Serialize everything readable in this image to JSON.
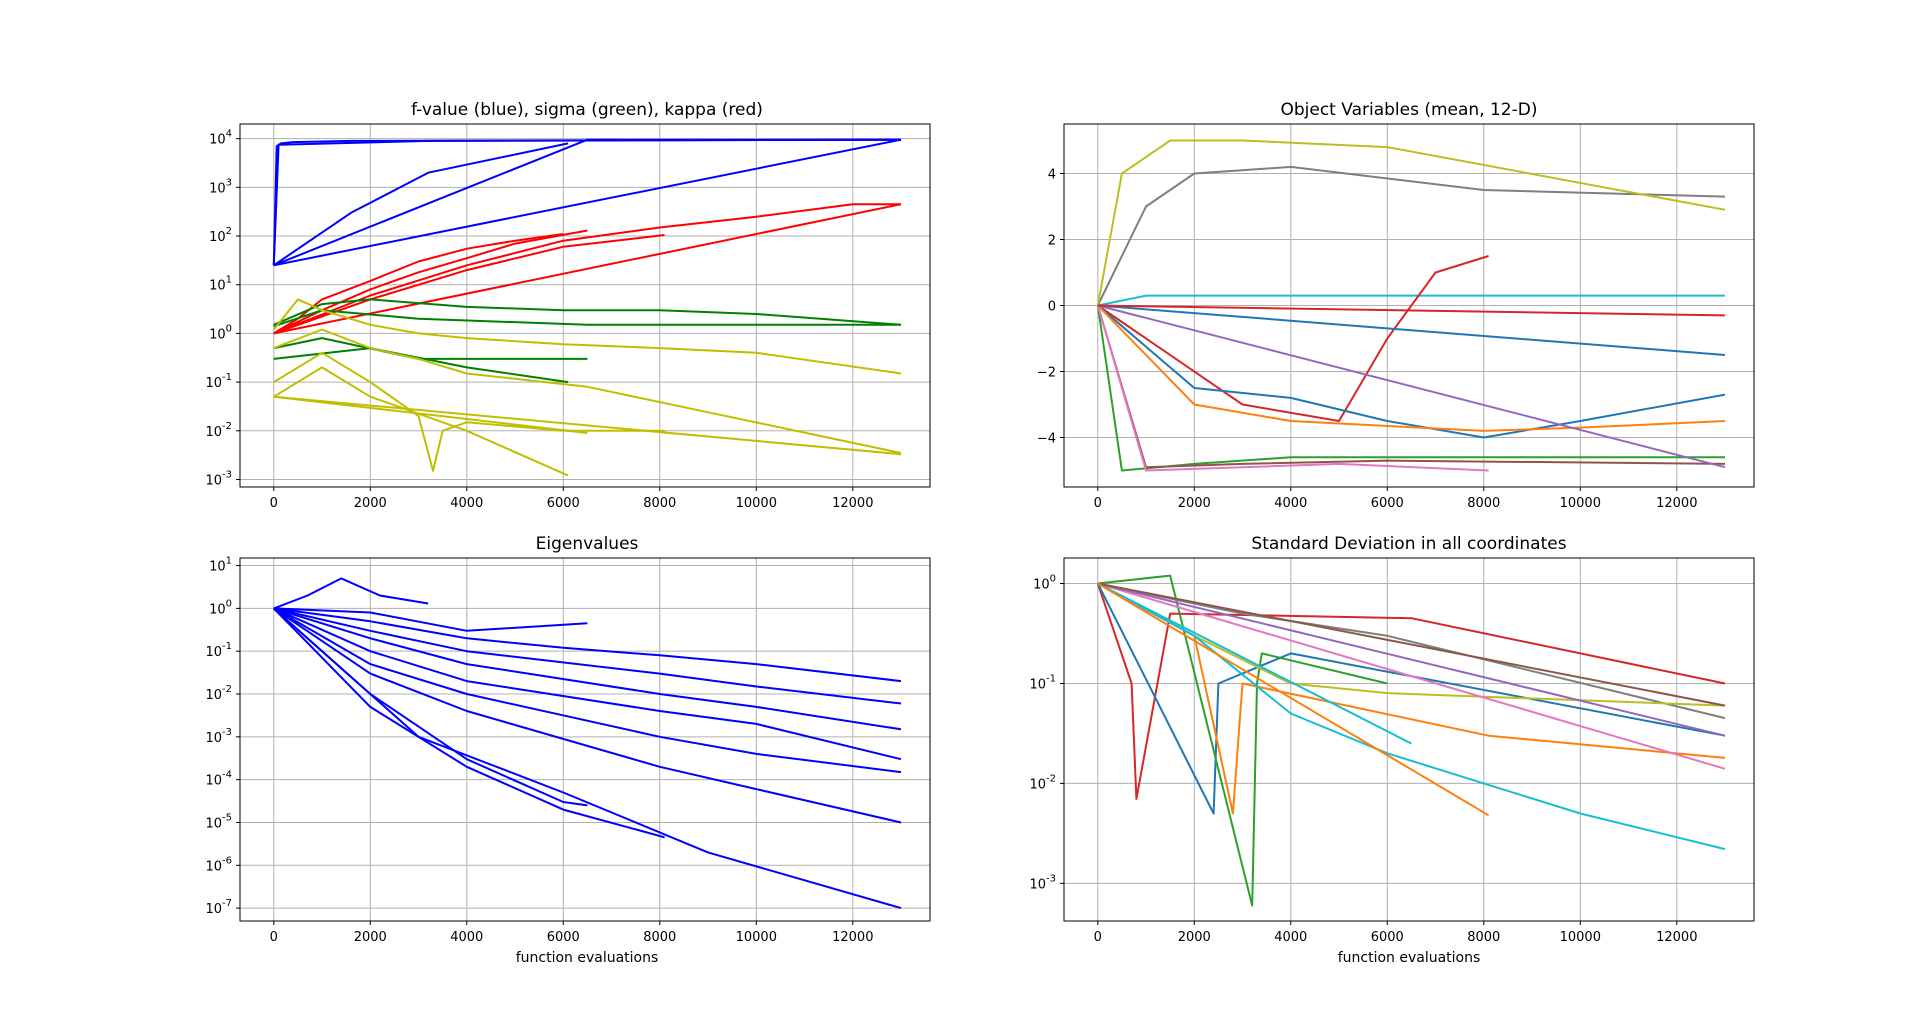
{
  "figure": {
    "panels": [
      {
        "title": "f-value (blue), sigma (green), kappa (red)",
        "xlabel": ""
      },
      {
        "title": "Object Variables (mean, 12-D)",
        "xlabel": ""
      },
      {
        "title": "Eigenvalues",
        "xlabel": "function evaluations"
      },
      {
        "title": "Standard Deviation in all coordinates",
        "xlabel": "function evaluations"
      }
    ]
  },
  "chart_data": [
    {
      "type": "line",
      "title": "f-value (blue), sigma (green), kappa (red)",
      "xlabel": "",
      "ylabel": "",
      "yscale": "log",
      "xlim": [
        -700,
        13600
      ],
      "ylim": [
        0.0007,
        20000
      ],
      "xticks": [
        0,
        2000,
        4000,
        6000,
        8000,
        10000,
        12000
      ],
      "yticks_exp": [
        -3,
        -2,
        -1,
        0,
        1,
        2,
        3,
        4
      ],
      "grid": true,
      "series": [
        {
          "color": "#0000ff",
          "x": [
            0,
            60,
            150,
            400,
            1600,
            13000
          ],
          "y": [
            25,
            7000,
            8000,
            8500,
            9000,
            9500
          ]
        },
        {
          "color": "#0000ff",
          "x": [
            0,
            100,
            3200,
            13000
          ],
          "y": [
            25,
            7500,
            9000,
            9500
          ]
        },
        {
          "color": "#0000ff",
          "x": [
            0,
            6500,
            13000
          ],
          "y": [
            25,
            9500,
            9500
          ]
        },
        {
          "color": "#0000ff",
          "x": [
            0,
            13000
          ],
          "y": [
            25,
            9500
          ]
        },
        {
          "color": "#0000ff",
          "x": [
            0,
            1600,
            3200,
            6100
          ],
          "y": [
            25,
            300,
            2000,
            8000
          ]
        },
        {
          "color": "#ff0000",
          "x": [
            0,
            500,
            1000,
            2000,
            3000,
            4000,
            5000,
            6000
          ],
          "y": [
            1,
            2,
            5,
            12,
            30,
            55,
            80,
            110
          ]
        },
        {
          "color": "#ff0000",
          "x": [
            0,
            1000,
            2000,
            3000,
            4000,
            5000,
            6500
          ],
          "y": [
            1,
            3,
            8,
            18,
            35,
            70,
            130
          ]
        },
        {
          "color": "#ff0000",
          "x": [
            0,
            2000,
            4000,
            6000,
            8100
          ],
          "y": [
            1,
            5,
            20,
            60,
            105
          ]
        },
        {
          "color": "#ff0000",
          "x": [
            0,
            2000,
            4000,
            6000,
            8000,
            10000,
            12000,
            13000
          ],
          "y": [
            1,
            6,
            25,
            80,
            150,
            250,
            450,
            450
          ]
        },
        {
          "color": "#ff0000",
          "x": [
            0,
            13000
          ],
          "y": [
            1,
            450
          ]
        },
        {
          "color": "#008000",
          "x": [
            0,
            1000,
            2000,
            4000,
            6000,
            8000,
            10000,
            13000
          ],
          "y": [
            1.5,
            4,
            5,
            3.5,
            3,
            3,
            2.5,
            1.5
          ]
        },
        {
          "color": "#008000",
          "x": [
            0,
            1000,
            3000,
            6500,
            13000
          ],
          "y": [
            1.4,
            3,
            2,
            1.5,
            1.5
          ]
        },
        {
          "color": "#008000",
          "x": [
            0,
            1000,
            3000,
            6500
          ],
          "y": [
            0.5,
            0.8,
            0.3,
            0.3
          ]
        },
        {
          "color": "#008000",
          "x": [
            0,
            2000,
            4000,
            6100
          ],
          "y": [
            0.3,
            0.5,
            0.2,
            0.1
          ]
        },
        {
          "color": "#bfbf00",
          "x": [
            0,
            500,
            1000,
            2000,
            3000,
            4000,
            6000,
            8000,
            10000,
            13000
          ],
          "y": [
            1.2,
            5,
            3,
            1.5,
            1,
            0.8,
            0.6,
            0.5,
            0.4,
            0.15
          ]
        },
        {
          "color": "#bfbf00",
          "x": [
            0,
            1000,
            2000,
            3000,
            4000,
            6500,
            13000
          ],
          "y": [
            0.5,
            1.2,
            0.5,
            0.3,
            0.15,
            0.08,
            0.0035
          ]
        },
        {
          "color": "#bfbf00",
          "x": [
            0,
            1000,
            2000,
            3000,
            3300,
            3500,
            4000,
            6000,
            8100
          ],
          "y": [
            0.1,
            0.4,
            0.1,
            0.02,
            0.0015,
            0.01,
            0.015,
            0.01,
            0.01
          ]
        },
        {
          "color": "#bfbf00",
          "x": [
            0,
            1000,
            2000,
            4000,
            6100
          ],
          "y": [
            0.05,
            0.2,
            0.05,
            0.01,
            0.0012
          ]
        },
        {
          "color": "#bfbf00",
          "x": [
            0,
            13000
          ],
          "y": [
            0.05,
            0.0033
          ]
        },
        {
          "color": "#bfbf00",
          "x": [
            0,
            6500
          ],
          "y": [
            0.05,
            0.009
          ]
        }
      ]
    },
    {
      "type": "line",
      "title": "Object Variables (mean, 12-D)",
      "xlabel": "",
      "ylabel": "",
      "xlim": [
        -700,
        13600
      ],
      "ylim": [
        -5.5,
        5.5
      ],
      "xticks": [
        0,
        2000,
        4000,
        6000,
        8000,
        10000,
        12000
      ],
      "yticks": [
        -4,
        -2,
        0,
        2,
        4
      ],
      "grid": true,
      "series": [
        {
          "color": "#7f7f7f",
          "x": [
            0,
            1000,
            2000,
            4000,
            8000,
            13000
          ],
          "y": [
            0,
            3,
            4,
            4.2,
            3.5,
            3.3
          ]
        },
        {
          "color": "#bcbd22",
          "x": [
            0,
            500,
            1500,
            3000,
            6000,
            13000
          ],
          "y": [
            0,
            4,
            5,
            5,
            4.8,
            2.9
          ]
        },
        {
          "color": "#17becf",
          "x": [
            0,
            1000,
            4000,
            8000,
            13000
          ],
          "y": [
            0,
            0.3,
            0.3,
            0.3,
            0.3
          ]
        },
        {
          "color": "#d62728",
          "x": [
            0,
            3000,
            5000,
            6000,
            7000,
            8100
          ],
          "y": [
            0,
            -3,
            -3.5,
            -1,
            1,
            1.5
          ]
        },
        {
          "color": "#1f77b4",
          "x": [
            0,
            2000,
            4000,
            6000,
            8000,
            10000,
            13000
          ],
          "y": [
            0,
            -2.5,
            -2.8,
            -3.5,
            -4,
            -3.5,
            -2.7
          ]
        },
        {
          "color": "#1f77b4",
          "x": [
            0,
            13000
          ],
          "y": [
            0,
            -1.5
          ]
        },
        {
          "color": "#ff7f0e",
          "x": [
            0,
            2000,
            4000,
            8000,
            10000,
            13000
          ],
          "y": [
            0,
            -3,
            -3.5,
            -3.8,
            -3.7,
            -3.5
          ]
        },
        {
          "color": "#2ca02c",
          "x": [
            0,
            500,
            2000,
            4000,
            13000
          ],
          "y": [
            0,
            -5,
            -4.8,
            -4.6,
            -4.6
          ]
        },
        {
          "color": "#8c564b",
          "x": [
            0,
            1000,
            3000,
            6000,
            13000
          ],
          "y": [
            0,
            -4.9,
            -4.8,
            -4.7,
            -4.8
          ]
        },
        {
          "color": "#e377c2",
          "x": [
            0,
            1000,
            3000,
            5000,
            8100
          ],
          "y": [
            0,
            -5,
            -4.9,
            -4.8,
            -5
          ]
        },
        {
          "color": "#9467bd",
          "x": [
            0,
            13000
          ],
          "y": [
            0,
            -4.9
          ]
        },
        {
          "color": "#d62728",
          "x": [
            0,
            13000
          ],
          "y": [
            0,
            -0.3
          ]
        }
      ]
    },
    {
      "type": "line",
      "title": "Eigenvalues",
      "xlabel": "function evaluations",
      "ylabel": "",
      "yscale": "log",
      "xlim": [
        -700,
        13600
      ],
      "ylim": [
        5e-08,
        15
      ],
      "xticks": [
        0,
        2000,
        4000,
        6000,
        8000,
        10000,
        12000
      ],
      "yticks_exp": [
        -7,
        -6,
        -5,
        -4,
        -3,
        -2,
        -1,
        0,
        1
      ],
      "grid": true,
      "series": [
        {
          "color": "#0000ff",
          "x": [
            0,
            700,
            1400,
            2200,
            3200
          ],
          "y": [
            1,
            2,
            5,
            2,
            1.3
          ]
        },
        {
          "color": "#0000ff",
          "x": [
            0,
            2000,
            4000,
            6500
          ],
          "y": [
            1,
            0.8,
            0.3,
            0.45
          ]
        },
        {
          "color": "#0000ff",
          "x": [
            0,
            2000,
            4000,
            6000,
            8000,
            10000,
            13000
          ],
          "y": [
            1,
            0.5,
            0.2,
            0.12,
            0.08,
            0.05,
            0.02
          ]
        },
        {
          "color": "#0000ff",
          "x": [
            0,
            2000,
            4000,
            8000,
            10000,
            13000
          ],
          "y": [
            1,
            0.3,
            0.1,
            0.03,
            0.015,
            0.006
          ]
        },
        {
          "color": "#0000ff",
          "x": [
            0,
            2000,
            4000,
            8000,
            10000,
            13000
          ],
          "y": [
            1,
            0.2,
            0.05,
            0.01,
            0.005,
            0.0015
          ]
        },
        {
          "color": "#0000ff",
          "x": [
            0,
            2000,
            4000,
            8000,
            10000,
            13000
          ],
          "y": [
            1,
            0.1,
            0.02,
            0.004,
            0.002,
            0.0003
          ]
        },
        {
          "color": "#0000ff",
          "x": [
            0,
            2000,
            4000,
            8000,
            10000,
            13000
          ],
          "y": [
            1,
            0.05,
            0.01,
            0.001,
            0.0004,
            0.00015
          ]
        },
        {
          "color": "#0000ff",
          "x": [
            0,
            2000,
            4000,
            8000,
            10000,
            13000
          ],
          "y": [
            1,
            0.03,
            0.004,
            0.0002,
            6e-05,
            1e-05
          ]
        },
        {
          "color": "#0000ff",
          "x": [
            0,
            2000,
            4000,
            6000,
            6500
          ],
          "y": [
            1,
            0.01,
            0.0003,
            3e-05,
            2.5e-05
          ]
        },
        {
          "color": "#0000ff",
          "x": [
            0,
            2000,
            4000,
            6000,
            8100
          ],
          "y": [
            1,
            0.005,
            0.0002,
            2e-05,
            4.5e-06
          ]
        },
        {
          "color": "#0000ff",
          "x": [
            0,
            3000,
            6000,
            9000,
            13000
          ],
          "y": [
            1,
            0.001,
            5e-05,
            2e-06,
            1e-07
          ]
        }
      ]
    },
    {
      "type": "line",
      "title": "Standard Deviation in all coordinates",
      "xlabel": "function evaluations",
      "ylabel": "",
      "yscale": "log",
      "xlim": [
        -700,
        13600
      ],
      "ylim": [
        0.00042,
        1.8
      ],
      "xticks": [
        0,
        2000,
        4000,
        6000,
        8000,
        10000,
        12000
      ],
      "yticks_exp": [
        -3,
        -2,
        -1,
        0
      ],
      "grid": true,
      "series": [
        {
          "color": "#d62728",
          "x": [
            0,
            700,
            800,
            1500,
            6500,
            13000
          ],
          "y": [
            1,
            0.1,
            0.007,
            0.5,
            0.45,
            0.1
          ]
        },
        {
          "color": "#1f77b4",
          "x": [
            0,
            2400,
            2500,
            4000,
            13000
          ],
          "y": [
            1,
            0.005,
            0.1,
            0.2,
            0.03
          ]
        },
        {
          "color": "#2ca02c",
          "x": [
            0,
            1500,
            3200,
            3300,
            3400,
            6000
          ],
          "y": [
            1,
            1.2,
            0.0006,
            0.1,
            0.2,
            0.1
          ]
        },
        {
          "color": "#ff7f0e",
          "x": [
            0,
            2000,
            2800,
            3000,
            8100,
            13000
          ],
          "y": [
            1,
            0.3,
            0.005,
            0.1,
            0.03,
            0.018
          ]
        },
        {
          "color": "#7f7f7f",
          "x": [
            0,
            3000,
            6000,
            13000
          ],
          "y": [
            1,
            0.5,
            0.3,
            0.045
          ]
        },
        {
          "color": "#bcbd22",
          "x": [
            0,
            2000,
            4000,
            6000,
            13000
          ],
          "y": [
            1,
            0.3,
            0.1,
            0.08,
            0.06
          ]
        },
        {
          "color": "#17becf",
          "x": [
            0,
            2000,
            4000,
            6000,
            8000,
            10000,
            13000
          ],
          "y": [
            1,
            0.3,
            0.05,
            0.02,
            0.01,
            0.005,
            0.0022
          ]
        },
        {
          "color": "#17becf",
          "x": [
            0,
            6500
          ],
          "y": [
            1,
            0.025
          ]
        },
        {
          "color": "#e377c2",
          "x": [
            0,
            13000
          ],
          "y": [
            1,
            0.014
          ]
        },
        {
          "color": "#9467bd",
          "x": [
            0,
            13000
          ],
          "y": [
            1,
            0.03
          ]
        },
        {
          "color": "#8c564b",
          "x": [
            0,
            13000
          ],
          "y": [
            1,
            0.06
          ]
        },
        {
          "color": "#ff7f0e",
          "x": [
            0,
            8100
          ],
          "y": [
            1,
            0.0048
          ]
        }
      ]
    }
  ]
}
